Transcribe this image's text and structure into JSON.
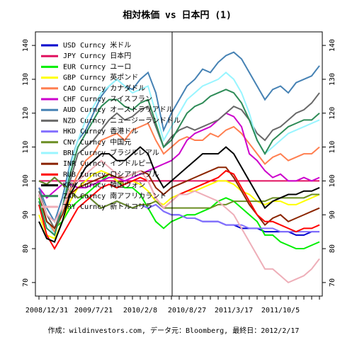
{
  "chart_data": {
    "type": "line",
    "title": "相対株価 vs 日本円 (1)",
    "footer": "作成：wildinvestors.com, データ元：Bloomberg, 最終日：2012/2/17",
    "categories": [
      null,
      "2008/12/31",
      null,
      null,
      null,
      null,
      null,
      "2009/7/21",
      null,
      null,
      null,
      null,
      null,
      "2010/2/8",
      null,
      null,
      null,
      null,
      null,
      "2010/8/27",
      null,
      null,
      null,
      null,
      null,
      "2011/3/17",
      null,
      null,
      null,
      null,
      null,
      "2011/10/5",
      null,
      null,
      null,
      null,
      null
    ],
    "ylim": [
      66,
      144
    ],
    "yticks": [
      70,
      80,
      90,
      100,
      110,
      120,
      130,
      140
    ],
    "legend_position": "top-left",
    "series": [
      {
        "name": "USD Curncy 米ドル",
        "color": "#0000cd",
        "values": [
          100,
          99,
          101,
          99,
          97,
          95,
          96,
          94,
          92,
          93,
          94,
          93,
          92,
          93,
          92,
          93,
          91,
          90,
          90,
          89,
          89,
          88,
          88,
          88,
          87,
          87,
          86,
          86,
          86,
          85,
          85,
          85,
          85,
          84,
          84,
          85,
          85
        ]
      },
      {
        "name": "JPY Curncy 日本円",
        "color": "#e0115f",
        "values": [
          100,
          100,
          100,
          100,
          100,
          100,
          100,
          100,
          100,
          100,
          100,
          100,
          100,
          100,
          100,
          100,
          100,
          100,
          100,
          100,
          100,
          100,
          100,
          100,
          100,
          100,
          100,
          100,
          100,
          100,
          100,
          100,
          100,
          100,
          100,
          100,
          100
        ]
      },
      {
        "name": "EUR Curncy ユーロ",
        "color": "#00ee00",
        "values": [
          95,
          88,
          86,
          88,
          92,
          94,
          96,
          98,
          100,
          102,
          100,
          98,
          98,
          96,
          92,
          88,
          86,
          88,
          89,
          90,
          90,
          91,
          92,
          94,
          95,
          94,
          92,
          90,
          88,
          84,
          84,
          82,
          81,
          80,
          80,
          81,
          82
        ]
      },
      {
        "name": "GBP Curncy 英ポンド",
        "color": "#ffff00",
        "values": [
          90,
          84,
          83,
          88,
          94,
          98,
          100,
          102,
          103,
          102,
          100,
          99,
          100,
          99,
          97,
          94,
          93,
          95,
          96,
          97,
          97,
          98,
          99,
          100,
          100,
          99,
          97,
          96,
          94,
          93,
          94,
          94,
          93,
          93,
          94,
          95,
          96
        ]
      },
      {
        "name": "CAD Curncy カナダドル",
        "color": "#ff7f50",
        "values": [
          96,
          88,
          85,
          90,
          97,
          102,
          106,
          108,
          112,
          113,
          114,
          112,
          115,
          116,
          117,
          112,
          108,
          110,
          112,
          113,
          112,
          112,
          114,
          113,
          115,
          116,
          114,
          111,
          108,
          105,
          107,
          108,
          106,
          107,
          108,
          108,
          110
        ]
      },
      {
        "name": "CHF Curncy スイスフラン",
        "color": "#cc00cc",
        "values": [
          98,
          95,
          97,
          99,
          99,
          98,
          98,
          99,
          100,
          101,
          101,
          100,
          101,
          102,
          103,
          104,
          105,
          106,
          108,
          112,
          114,
          115,
          116,
          118,
          120,
          119,
          116,
          108,
          106,
          103,
          101,
          102,
          100,
          100,
          101,
          100,
          101
        ]
      },
      {
        "name": "AUD Curncy オーストラリアドル",
        "color": "#4682b4",
        "values": [
          98,
          92,
          88,
          95,
          105,
          112,
          115,
          120,
          125,
          128,
          130,
          128,
          127,
          130,
          132,
          126,
          115,
          120,
          124,
          128,
          130,
          133,
          132,
          135,
          137,
          138,
          136,
          132,
          128,
          124,
          127,
          128,
          126,
          129,
          130,
          131,
          134
        ]
      },
      {
        "name": "NZD Curncy ニュージーランドドル",
        "color": "#696969",
        "values": [
          97,
          90,
          86,
          92,
          100,
          108,
          110,
          112,
          115,
          118,
          120,
          118,
          119,
          121,
          122,
          116,
          110,
          113,
          115,
          116,
          115,
          116,
          117,
          118,
          120,
          122,
          121,
          118,
          114,
          112,
          115,
          116,
          118,
          120,
          121,
          123,
          126
        ]
      },
      {
        "name": "HKD Curncy 香港ドル",
        "color": "#8470ff",
        "values": [
          100,
          99,
          101,
          99,
          97,
          95,
          96,
          94,
          92,
          93,
          94,
          93,
          92,
          93,
          92,
          93,
          91,
          90,
          90,
          89,
          89,
          88,
          88,
          88,
          87,
          87,
          87,
          86,
          86,
          86,
          86,
          85,
          85,
          85,
          85,
          85,
          85
        ]
      },
      {
        "name": "CNY Curncy 中国元",
        "color": "#6b8e23",
        "values": [
          100,
          99,
          101,
          99,
          97,
          95,
          96,
          94,
          92,
          93,
          94,
          93,
          92,
          93,
          93,
          94,
          92,
          92,
          92,
          92,
          92,
          92,
          92,
          93,
          93,
          94,
          94,
          94,
          94,
          94,
          95,
          95,
          95,
          95,
          95,
          96,
          96
        ]
      },
      {
        "name": "BRL Curncy ブラジルレアル",
        "color": "#98f5ff",
        "values": [
          96,
          88,
          84,
          92,
          104,
          112,
          118,
          122,
          126,
          128,
          130,
          128,
          126,
          127,
          128,
          120,
          112,
          116,
          120,
          124,
          126,
          128,
          129,
          130,
          132,
          130,
          126,
          120,
          112,
          108,
          110,
          112,
          114,
          115,
          116,
          117,
          118
        ]
      },
      {
        "name": "INR Curncy インドルピー",
        "color": "#8b2500",
        "values": [
          96,
          88,
          86,
          90,
          96,
          98,
          99,
          100,
          101,
          102,
          101,
          101,
          102,
          103,
          102,
          98,
          96,
          98,
          99,
          100,
          101,
          102,
          103,
          104,
          104,
          101,
          97,
          93,
          90,
          87,
          89,
          90,
          88,
          89,
          90,
          91,
          92
        ]
      },
      {
        "name": "RUB Curncy ロシアルーブル",
        "color": "#ff0000",
        "values": [
          93,
          84,
          80,
          84,
          88,
          92,
          94,
          96,
          98,
          99,
          98,
          99,
          100,
          101,
          100,
          95,
          92,
          94,
          96,
          97,
          98,
          99,
          100,
          101,
          103,
          102,
          98,
          94,
          90,
          88,
          88,
          87,
          86,
          85,
          86,
          86,
          87
        ]
      },
      {
        "name": "KRW Curncy 韓国ウォン",
        "color": "#000000",
        "values": [
          88,
          83,
          82,
          88,
          96,
          100,
          104,
          106,
          108,
          108,
          106,
          106,
          108,
          110,
          108,
          102,
          98,
          100,
          102,
          104,
          106,
          108,
          108,
          108,
          110,
          108,
          104,
          100,
          96,
          92,
          94,
          95,
          96,
          96,
          97,
          97,
          98
        ]
      },
      {
        "name": "ZAR Curncy 南アフリカランド",
        "color": "#2e8b57",
        "values": [
          94,
          86,
          84,
          92,
          102,
          110,
          114,
          118,
          122,
          124,
          124,
          122,
          121,
          123,
          124,
          117,
          110,
          112,
          116,
          120,
          122,
          123,
          125,
          126,
          127,
          126,
          123,
          118,
          112,
          108,
          112,
          114,
          116,
          117,
          118,
          118,
          120
        ]
      },
      {
        "name": "TRY Curncy 新トルコリラ",
        "color": "#eeaeb8",
        "values": [
          96,
          90,
          88,
          92,
          98,
          100,
          102,
          104,
          106,
          104,
          102,
          101,
          102,
          103,
          100,
          95,
          92,
          94,
          96,
          96,
          97,
          96,
          95,
          94,
          92,
          90,
          86,
          82,
          78,
          74,
          74,
          72,
          70,
          71,
          72,
          74,
          77
        ]
      }
    ]
  }
}
